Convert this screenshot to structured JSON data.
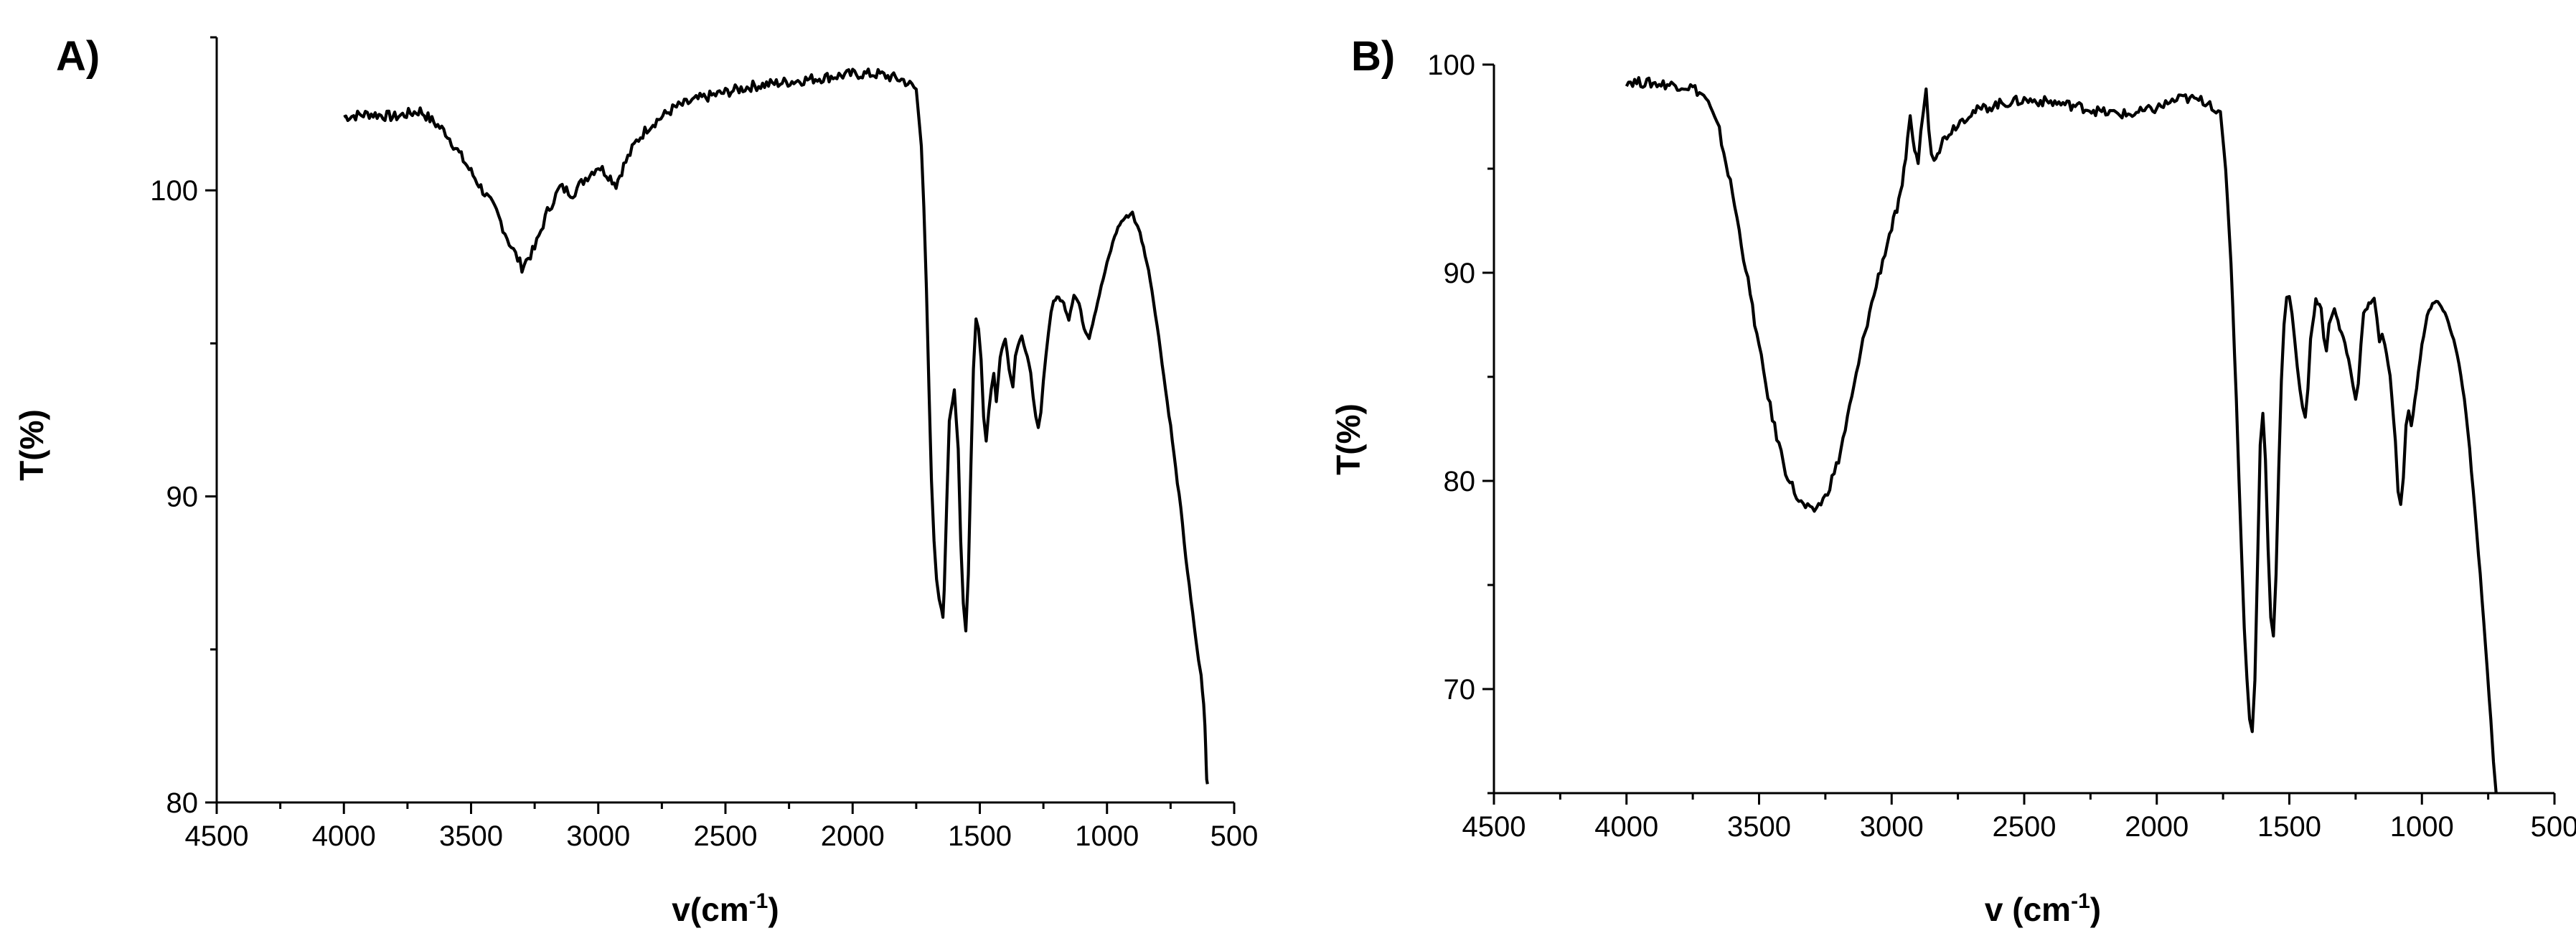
{
  "chart_data": [
    {
      "type": "line",
      "panel_label": "A)",
      "xlabel": "v(cm",
      "xlabel_sup": "-1",
      "xlabel_close": ")",
      "ylabel": "T(%)",
      "xlim": [
        4500,
        500
      ],
      "ylim": [
        80,
        105
      ],
      "x_ticks": [
        4500,
        4000,
        3500,
        3000,
        2500,
        2000,
        1500,
        1000,
        500
      ],
      "x_tick_labels": [
        "4500",
        "4000",
        "3500",
        "3000",
        "2500",
        "2000",
        "1500",
        "1000",
        "500"
      ],
      "y_ticks": [
        80,
        90,
        100
      ],
      "y_tick_labels": [
        "80",
        "90",
        "100"
      ],
      "grid": false,
      "legend": false,
      "line_color": "#000000",
      "series": [
        {
          "x": [
            4000,
            3900,
            3800,
            3700,
            3600,
            3500,
            3400,
            3350,
            3300,
            3250,
            3200,
            3150,
            3100,
            3050,
            3000,
            2960,
            2930,
            2900,
            2850,
            2800,
            2700,
            2600,
            2500,
            2400,
            2300,
            2200,
            2100,
            2000,
            1900,
            1800,
            1750,
            1730,
            1720,
            1710,
            1700,
            1690,
            1680,
            1670,
            1660,
            1650,
            1645,
            1640,
            1630,
            1620,
            1600,
            1585,
            1575,
            1565,
            1555,
            1545,
            1535,
            1525,
            1515,
            1505,
            1495,
            1485,
            1475,
            1465,
            1455,
            1445,
            1435,
            1420,
            1400,
            1385,
            1370,
            1360,
            1350,
            1335,
            1320,
            1300,
            1290,
            1280,
            1270,
            1260,
            1250,
            1240,
            1230,
            1220,
            1210,
            1190,
            1170,
            1150,
            1130,
            1110,
            1090,
            1070,
            1050,
            1030,
            1000,
            970,
            950,
            930,
            910,
            900,
            890,
            880,
            870,
            850,
            830,
            810,
            790,
            770,
            750,
            730,
            710,
            690,
            670,
            650,
            640,
            630,
            625,
            620,
            615,
            612,
            610,
            608,
            605
          ],
          "y": [
            102.4,
            102.5,
            102.4,
            102.6,
            101.9,
            100.6,
            99.3,
            98.3,
            97.5,
            98.1,
            99.3,
            100.1,
            99.9,
            100.4,
            100.8,
            100.5,
            100.2,
            100.8,
            101.6,
            102.1,
            102.7,
            103.0,
            103.2,
            103.4,
            103.5,
            103.6,
            103.7,
            103.8,
            103.8,
            103.6,
            103.3,
            101.5,
            99.5,
            96.8,
            93.5,
            90.5,
            88.5,
            87.3,
            86.6,
            86.3,
            86.1,
            86.9,
            89.8,
            92.5,
            93.5,
            91.5,
            88.5,
            86.5,
            85.6,
            87.5,
            91.0,
            94.2,
            95.8,
            95.5,
            94.5,
            92.6,
            91.8,
            92.8,
            93.5,
            94.0,
            93.1,
            94.6,
            95.2,
            94.2,
            93.6,
            94.6,
            94.9,
            95.2,
            94.8,
            94.0,
            93.2,
            92.6,
            92.2,
            92.8,
            93.8,
            94.6,
            95.4,
            96.0,
            96.4,
            96.5,
            96.3,
            95.8,
            96.6,
            96.3,
            95.5,
            95.2,
            95.9,
            96.6,
            97.6,
            98.5,
            98.9,
            99.1,
            99.2,
            99.3,
            99.0,
            98.8,
            98.6,
            97.9,
            97.1,
            96.0,
            94.8,
            93.5,
            92.3,
            90.9,
            89.6,
            88.0,
            86.6,
            85.3,
            84.6,
            84.2,
            83.6,
            83.2,
            82.5,
            81.8,
            81.2,
            80.8,
            80.6
          ]
        }
      ]
    },
    {
      "type": "line",
      "panel_label": "B)",
      "xlabel": "v (cm",
      "xlabel_sup": "-1",
      "xlabel_close": ")",
      "ylabel": "T(%)",
      "xlim": [
        4500,
        500
      ],
      "ylim": [
        65,
        100
      ],
      "x_ticks": [
        4500,
        4000,
        3500,
        3000,
        2500,
        2000,
        1500,
        1000,
        500
      ],
      "x_tick_labels": [
        "4500",
        "4000",
        "3500",
        "3000",
        "2500",
        "2000",
        "1500",
        "1000",
        "500"
      ],
      "y_ticks": [
        70,
        80,
        90,
        100
      ],
      "y_tick_labels": [
        "70",
        "80",
        "90",
        "100"
      ],
      "grid": false,
      "legend": false,
      "line_color": "#000000",
      "series": [
        {
          "x": [
            4000,
            3900,
            3800,
            3750,
            3700,
            3650,
            3600,
            3550,
            3500,
            3450,
            3400,
            3350,
            3300,
            3250,
            3200,
            3150,
            3100,
            3050,
            3000,
            2980,
            2960,
            2940,
            2930,
            2920,
            2900,
            2890,
            2880,
            2870,
            2860,
            2850,
            2840,
            2820,
            2800,
            2750,
            2700,
            2600,
            2500,
            2400,
            2300,
            2200,
            2100,
            2000,
            1950,
            1900,
            1850,
            1800,
            1760,
            1740,
            1720,
            1700,
            1690,
            1680,
            1670,
            1660,
            1650,
            1640,
            1630,
            1620,
            1610,
            1600,
            1590,
            1580,
            1570,
            1560,
            1550,
            1540,
            1530,
            1520,
            1510,
            1500,
            1490,
            1480,
            1470,
            1460,
            1450,
            1440,
            1430,
            1420,
            1400,
            1380,
            1370,
            1360,
            1350,
            1330,
            1310,
            1290,
            1270,
            1260,
            1250,
            1240,
            1230,
            1220,
            1200,
            1180,
            1170,
            1160,
            1150,
            1140,
            1120,
            1100,
            1090,
            1080,
            1070,
            1060,
            1050,
            1040,
            1020,
            1000,
            980,
            960,
            940,
            920,
            900,
            880,
            860,
            840,
            820,
            800,
            780,
            760,
            740,
            730,
            720
          ],
          "y": [
            99.2,
            99.1,
            99.0,
            98.9,
            98.4,
            96.8,
            93.8,
            90.2,
            86.4,
            83.0,
            80.5,
            79.0,
            78.5,
            79.2,
            81.0,
            84.0,
            87.2,
            89.8,
            92.2,
            93.0,
            94.0,
            96.5,
            97.6,
            96.3,
            95.3,
            96.6,
            98.0,
            98.9,
            96.8,
            95.9,
            95.6,
            96.0,
            96.5,
            97.2,
            97.7,
            98.1,
            98.3,
            98.2,
            98.0,
            97.7,
            97.6,
            97.9,
            98.2,
            98.4,
            98.3,
            98.2,
            97.5,
            95.0,
            90.5,
            84.0,
            80.0,
            76.5,
            73.0,
            70.5,
            68.6,
            67.9,
            70.5,
            76.0,
            81.8,
            83.2,
            81.0,
            76.8,
            73.5,
            72.5,
            75.5,
            80.5,
            84.8,
            87.5,
            88.8,
            88.9,
            88.0,
            86.8,
            85.5,
            84.4,
            83.5,
            83.1,
            84.5,
            86.8,
            88.7,
            88.3,
            86.8,
            86.2,
            87.6,
            88.3,
            87.3,
            86.6,
            85.4,
            84.6,
            84.0,
            84.7,
            86.6,
            88.0,
            88.5,
            88.8,
            87.8,
            86.7,
            87.0,
            86.6,
            85.0,
            82.0,
            79.5,
            78.8,
            80.2,
            82.6,
            83.4,
            82.6,
            84.5,
            86.5,
            88.0,
            88.5,
            88.6,
            88.2,
            87.6,
            86.8,
            85.6,
            84.0,
            81.5,
            78.5,
            75.5,
            72.0,
            68.5,
            66.5,
            65.0
          ]
        }
      ]
    }
  ]
}
